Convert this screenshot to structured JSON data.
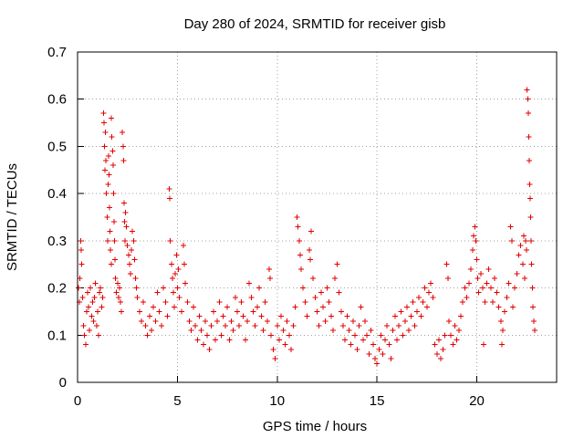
{
  "chart_data": {
    "type": "scatter",
    "title": "Day 280 of 2024, SRMTID for receiver gisb",
    "xlabel": "GPS time / hours",
    "ylabel": "SRMTID / TECUs",
    "xlim": [
      0,
      24
    ],
    "ylim": [
      0,
      0.7
    ],
    "x_ticks": [
      0,
      5,
      10,
      15,
      20
    ],
    "x_tick_labels": [
      "0",
      "5",
      "10",
      "15",
      "20"
    ],
    "y_ticks": [
      0,
      0.1,
      0.2,
      0.3,
      0.4,
      0.5,
      0.6,
      0.7
    ],
    "y_tick_labels": [
      "0",
      "0.1",
      "0.2",
      "0.3",
      "0.4",
      "0.5",
      "0.6",
      "0.7"
    ],
    "grid": true,
    "marker": "plus",
    "marker_color": "#e00000",
    "series": [
      {
        "name": "SRMTID",
        "points": [
          [
            0.05,
            0.2
          ],
          [
            0.08,
            0.17
          ],
          [
            0.12,
            0.22
          ],
          [
            0.15,
            0.3
          ],
          [
            0.18,
            0.28
          ],
          [
            0.2,
            0.25
          ],
          [
            0.25,
            0.18
          ],
          [
            0.3,
            0.12
          ],
          [
            0.35,
            0.1
          ],
          [
            0.4,
            0.08
          ],
          [
            0.45,
            0.15
          ],
          [
            0.5,
            0.19
          ],
          [
            0.55,
            0.16
          ],
          [
            0.6,
            0.11
          ],
          [
            0.65,
            0.2
          ],
          [
            0.7,
            0.14
          ],
          [
            0.75,
            0.17
          ],
          [
            0.8,
            0.13
          ],
          [
            0.85,
            0.18
          ],
          [
            0.9,
            0.21
          ],
          [
            0.95,
            0.12
          ],
          [
            1.0,
            0.15
          ],
          [
            1.05,
            0.1
          ],
          [
            1.1,
            0.19
          ],
          [
            1.15,
            0.2
          ],
          [
            1.2,
            0.16
          ],
          [
            1.25,
            0.18
          ],
          [
            1.3,
            0.57
          ],
          [
            1.32,
            0.55
          ],
          [
            1.35,
            0.5
          ],
          [
            1.38,
            0.45
          ],
          [
            1.4,
            0.53
          ],
          [
            1.42,
            0.47
          ],
          [
            1.45,
            0.4
          ],
          [
            1.48,
            0.35
          ],
          [
            1.5,
            0.3
          ],
          [
            1.52,
            0.42
          ],
          [
            1.55,
            0.48
          ],
          [
            1.58,
            0.44
          ],
          [
            1.6,
            0.37
          ],
          [
            1.62,
            0.32
          ],
          [
            1.65,
            0.28
          ],
          [
            1.68,
            0.25
          ],
          [
            1.7,
            0.56
          ],
          [
            1.72,
            0.52
          ],
          [
            1.75,
            0.49
          ],
          [
            1.78,
            0.46
          ],
          [
            1.8,
            0.4
          ],
          [
            1.82,
            0.34
          ],
          [
            1.85,
            0.3
          ],
          [
            1.88,
            0.26
          ],
          [
            1.9,
            0.22
          ],
          [
            1.95,
            0.19
          ],
          [
            2.0,
            0.21
          ],
          [
            2.05,
            0.18
          ],
          [
            2.1,
            0.2
          ],
          [
            2.15,
            0.17
          ],
          [
            2.2,
            0.15
          ],
          [
            2.25,
            0.53
          ],
          [
            2.28,
            0.5
          ],
          [
            2.3,
            0.47
          ],
          [
            2.32,
            0.38
          ],
          [
            2.35,
            0.34
          ],
          [
            2.38,
            0.3
          ],
          [
            2.4,
            0.36
          ],
          [
            2.45,
            0.33
          ],
          [
            2.5,
            0.29
          ],
          [
            2.55,
            0.27
          ],
          [
            2.6,
            0.25
          ],
          [
            2.65,
            0.23
          ],
          [
            2.7,
            0.28
          ],
          [
            2.75,
            0.32
          ],
          [
            2.8,
            0.3
          ],
          [
            2.85,
            0.26
          ],
          [
            2.9,
            0.22
          ],
          [
            2.95,
            0.2
          ],
          [
            3.0,
            0.18
          ],
          [
            3.1,
            0.15
          ],
          [
            3.2,
            0.13
          ],
          [
            3.3,
            0.17
          ],
          [
            3.4,
            0.12
          ],
          [
            3.5,
            0.1
          ],
          [
            3.6,
            0.14
          ],
          [
            3.7,
            0.11
          ],
          [
            3.8,
            0.16
          ],
          [
            3.9,
            0.13
          ],
          [
            4.0,
            0.19
          ],
          [
            4.1,
            0.15
          ],
          [
            4.2,
            0.12
          ],
          [
            4.3,
            0.2
          ],
          [
            4.4,
            0.17
          ],
          [
            4.5,
            0.14
          ],
          [
            4.6,
            0.41
          ],
          [
            4.62,
            0.39
          ],
          [
            4.65,
            0.3
          ],
          [
            4.7,
            0.25
          ],
          [
            4.75,
            0.22
          ],
          [
            4.8,
            0.19
          ],
          [
            4.85,
            0.16
          ],
          [
            4.9,
            0.23
          ],
          [
            4.95,
            0.27
          ],
          [
            5.0,
            0.2
          ],
          [
            5.05,
            0.24
          ],
          [
            5.1,
            0.18
          ],
          [
            5.2,
            0.15
          ],
          [
            5.3,
            0.29
          ],
          [
            5.35,
            0.25
          ],
          [
            5.4,
            0.21
          ],
          [
            5.5,
            0.17
          ],
          [
            5.6,
            0.13
          ],
          [
            5.7,
            0.11
          ],
          [
            5.8,
            0.16
          ],
          [
            5.9,
            0.12
          ],
          [
            6.0,
            0.09
          ],
          [
            6.1,
            0.14
          ],
          [
            6.2,
            0.11
          ],
          [
            6.3,
            0.08
          ],
          [
            6.4,
            0.13
          ],
          [
            6.5,
            0.1
          ],
          [
            6.6,
            0.07
          ],
          [
            6.7,
            0.12
          ],
          [
            6.8,
            0.15
          ],
          [
            6.9,
            0.09
          ],
          [
            7.0,
            0.13
          ],
          [
            7.1,
            0.17
          ],
          [
            7.2,
            0.1
          ],
          [
            7.3,
            0.14
          ],
          [
            7.4,
            0.12
          ],
          [
            7.5,
            0.16
          ],
          [
            7.6,
            0.09
          ],
          [
            7.7,
            0.13
          ],
          [
            7.8,
            0.11
          ],
          [
            7.9,
            0.18
          ],
          [
            8.0,
            0.15
          ],
          [
            8.1,
            0.12
          ],
          [
            8.2,
            0.17
          ],
          [
            8.3,
            0.14
          ],
          [
            8.4,
            0.09
          ],
          [
            8.5,
            0.13
          ],
          [
            8.6,
            0.21
          ],
          [
            8.7,
            0.18
          ],
          [
            8.8,
            0.15
          ],
          [
            8.9,
            0.12
          ],
          [
            9.0,
            0.16
          ],
          [
            9.1,
            0.2
          ],
          [
            9.2,
            0.14
          ],
          [
            9.3,
            0.11
          ],
          [
            9.4,
            0.17
          ],
          [
            9.5,
            0.13
          ],
          [
            9.6,
            0.24
          ],
          [
            9.65,
            0.22
          ],
          [
            9.7,
            0.1
          ],
          [
            9.8,
            0.07
          ],
          [
            9.9,
            0.05
          ],
          [
            10.0,
            0.12
          ],
          [
            10.1,
            0.09
          ],
          [
            10.2,
            0.14
          ],
          [
            10.3,
            0.11
          ],
          [
            10.4,
            0.08
          ],
          [
            10.5,
            0.13
          ],
          [
            10.6,
            0.1
          ],
          [
            10.7,
            0.07
          ],
          [
            10.8,
            0.12
          ],
          [
            10.9,
            0.16
          ],
          [
            11.0,
            0.35
          ],
          [
            11.05,
            0.33
          ],
          [
            11.1,
            0.3
          ],
          [
            11.15,
            0.27
          ],
          [
            11.2,
            0.24
          ],
          [
            11.3,
            0.2
          ],
          [
            11.4,
            0.17
          ],
          [
            11.5,
            0.14
          ],
          [
            11.6,
            0.28
          ],
          [
            11.65,
            0.26
          ],
          [
            11.7,
            0.32
          ],
          [
            11.8,
            0.22
          ],
          [
            11.9,
            0.18
          ],
          [
            12.0,
            0.15
          ],
          [
            12.1,
            0.12
          ],
          [
            12.2,
            0.19
          ],
          [
            12.3,
            0.16
          ],
          [
            12.4,
            0.13
          ],
          [
            12.5,
            0.2
          ],
          [
            12.6,
            0.17
          ],
          [
            12.7,
            0.14
          ],
          [
            12.8,
            0.11
          ],
          [
            12.9,
            0.22
          ],
          [
            13.0,
            0.25
          ],
          [
            13.1,
            0.19
          ],
          [
            13.2,
            0.15
          ],
          [
            13.3,
            0.12
          ],
          [
            13.4,
            0.09
          ],
          [
            13.5,
            0.14
          ],
          [
            13.6,
            0.11
          ],
          [
            13.7,
            0.08
          ],
          [
            13.8,
            0.13
          ],
          [
            13.9,
            0.1
          ],
          [
            14.0,
            0.07
          ],
          [
            14.1,
            0.12
          ],
          [
            14.2,
            0.16
          ],
          [
            14.3,
            0.09
          ],
          [
            14.4,
            0.13
          ],
          [
            14.5,
            0.1
          ],
          [
            14.6,
            0.06
          ],
          [
            14.7,
            0.11
          ],
          [
            14.8,
            0.08
          ],
          [
            14.9,
            0.05
          ],
          [
            15.0,
            0.04
          ],
          [
            15.1,
            0.07
          ],
          [
            15.2,
            0.1
          ],
          [
            15.3,
            0.06
          ],
          [
            15.4,
            0.09
          ],
          [
            15.5,
            0.12
          ],
          [
            15.6,
            0.08
          ],
          [
            15.7,
            0.05
          ],
          [
            15.8,
            0.11
          ],
          [
            15.9,
            0.14
          ],
          [
            16.0,
            0.09
          ],
          [
            16.1,
            0.12
          ],
          [
            16.2,
            0.15
          ],
          [
            16.3,
            0.1
          ],
          [
            16.4,
            0.13
          ],
          [
            16.5,
            0.16
          ],
          [
            16.6,
            0.11
          ],
          [
            16.7,
            0.14
          ],
          [
            16.8,
            0.17
          ],
          [
            16.9,
            0.12
          ],
          [
            17.0,
            0.15
          ],
          [
            17.1,
            0.18
          ],
          [
            17.2,
            0.14
          ],
          [
            17.3,
            0.17
          ],
          [
            17.4,
            0.2
          ],
          [
            17.5,
            0.16
          ],
          [
            17.6,
            0.19
          ],
          [
            17.7,
            0.21
          ],
          [
            17.8,
            0.18
          ],
          [
            17.9,
            0.08
          ],
          [
            18.0,
            0.06
          ],
          [
            18.1,
            0.09
          ],
          [
            18.2,
            0.05
          ],
          [
            18.3,
            0.07
          ],
          [
            18.4,
            0.1
          ],
          [
            18.5,
            0.25
          ],
          [
            18.55,
            0.22
          ],
          [
            18.6,
            0.13
          ],
          [
            18.7,
            0.1
          ],
          [
            18.8,
            0.08
          ],
          [
            18.9,
            0.12
          ],
          [
            19.0,
            0.09
          ],
          [
            19.1,
            0.11
          ],
          [
            19.2,
            0.14
          ],
          [
            19.3,
            0.17
          ],
          [
            19.4,
            0.2
          ],
          [
            19.5,
            0.18
          ],
          [
            19.6,
            0.21
          ],
          [
            19.7,
            0.24
          ],
          [
            19.8,
            0.28
          ],
          [
            19.85,
            0.31
          ],
          [
            19.9,
            0.33
          ],
          [
            19.95,
            0.3
          ],
          [
            20.0,
            0.26
          ],
          [
            20.05,
            0.22
          ],
          [
            20.1,
            0.19
          ],
          [
            20.2,
            0.23
          ],
          [
            20.3,
            0.2
          ],
          [
            20.35,
            0.08
          ],
          [
            20.4,
            0.17
          ],
          [
            20.5,
            0.21
          ],
          [
            20.6,
            0.24
          ],
          [
            20.7,
            0.2
          ],
          [
            20.8,
            0.17
          ],
          [
            20.9,
            0.22
          ],
          [
            21.0,
            0.19
          ],
          [
            21.1,
            0.16
          ],
          [
            21.2,
            0.13
          ],
          [
            21.25,
            0.08
          ],
          [
            21.3,
            0.11
          ],
          [
            21.4,
            0.15
          ],
          [
            21.5,
            0.18
          ],
          [
            21.6,
            0.21
          ],
          [
            21.7,
            0.33
          ],
          [
            21.75,
            0.3
          ],
          [
            21.8,
            0.16
          ],
          [
            21.9,
            0.2
          ],
          [
            22.0,
            0.23
          ],
          [
            22.1,
            0.27
          ],
          [
            22.2,
            0.29
          ],
          [
            22.3,
            0.25
          ],
          [
            22.35,
            0.31
          ],
          [
            22.4,
            0.22
          ],
          [
            22.45,
            0.3
          ],
          [
            22.5,
            0.28
          ],
          [
            22.52,
            0.62
          ],
          [
            22.55,
            0.6
          ],
          [
            22.58,
            0.57
          ],
          [
            22.6,
            0.52
          ],
          [
            22.62,
            0.47
          ],
          [
            22.65,
            0.42
          ],
          [
            22.68,
            0.39
          ],
          [
            22.7,
            0.35
          ],
          [
            22.72,
            0.3
          ],
          [
            22.75,
            0.25
          ],
          [
            22.78,
            0.2
          ],
          [
            22.8,
            0.16
          ],
          [
            22.85,
            0.13
          ],
          [
            22.9,
            0.11
          ]
        ]
      }
    ]
  }
}
